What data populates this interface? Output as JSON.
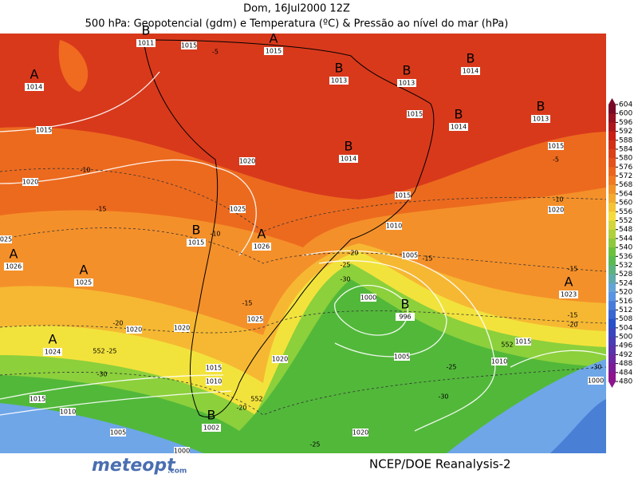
{
  "header": {
    "date": "Dom, 16Jul2000 12Z",
    "title": "500 hPa: Geopotencial (gdm) e Temperatura (ºC) & Pressão ao nível do mar (hPa)"
  },
  "centers": [
    {
      "letter": "B",
      "value": 1011
    },
    {
      "letter": "A",
      "value": 1015
    },
    {
      "letter": "A",
      "value": 1014
    },
    {
      "letter": "B",
      "value": 1013
    },
    {
      "letter": "B",
      "value": 1013
    },
    {
      "letter": "B",
      "value": 1014
    },
    {
      "letter": "B",
      "value": 1014
    },
    {
      "letter": "B",
      "value": 1013
    },
    {
      "letter": "B",
      "value": 1014
    },
    {
      "letter": "B",
      "value": 1015
    },
    {
      "letter": "A",
      "value": 1026
    },
    {
      "letter": "A",
      "value": 1026
    },
    {
      "letter": "A",
      "value": 1025
    },
    {
      "letter": "A",
      "value": 1023
    },
    {
      "letter": "B",
      "value": 996
    },
    {
      "letter": "A",
      "value": 1024
    },
    {
      "letter": "B",
      "value": 1002
    }
  ],
  "contour_labels": [
    1015,
    -5,
    1015,
    -10,
    1020,
    1020,
    -15,
    1025,
    -10,
    1025,
    1015,
    1015,
    -5,
    1015,
    -10,
    1020,
    1010,
    -20,
    -25,
    1005,
    -15,
    -30,
    1000,
    -15,
    1025,
    -20,
    1020,
    1020,
    -15,
    -15,
    -20,
    552,
    1015,
    552,
    -25,
    1010,
    1005,
    1020,
    -25,
    1015,
    1010,
    -30,
    552,
    -30,
    1015,
    -20,
    1010,
    1005,
    -25,
    1020,
    1000,
    -30,
    1000
  ],
  "colorbar": {
    "ticks": [
      604,
      600,
      596,
      592,
      588,
      584,
      580,
      576,
      572,
      568,
      564,
      560,
      556,
      552,
      548,
      544,
      540,
      536,
      532,
      528,
      524,
      520,
      516,
      512,
      508,
      504,
      500,
      496,
      492,
      488,
      484,
      480
    ]
  },
  "footer": {
    "source": "NCEP/DOE Reanalysis-2",
    "logo": "meteopt",
    "logo_suffix": ".com"
  }
}
